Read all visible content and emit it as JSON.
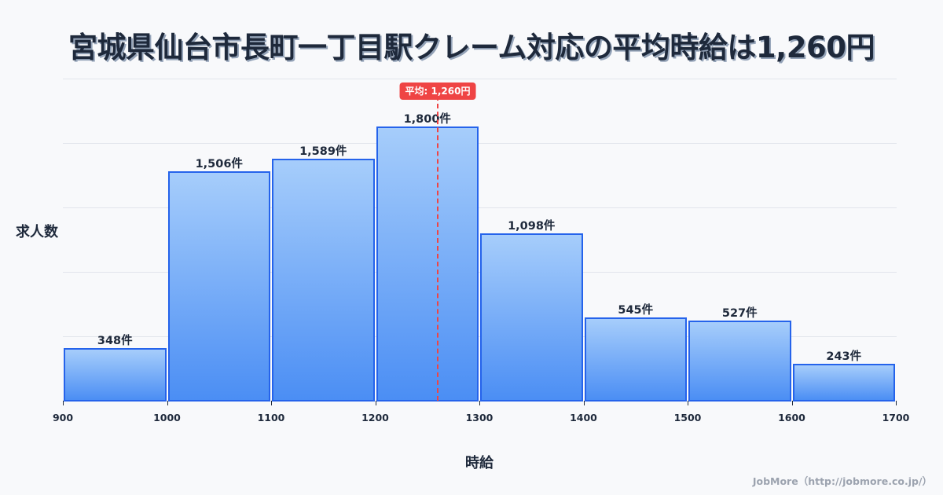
{
  "header": {
    "title": "宮城県仙台市長町一丁目駅クレーム対応の平均時給は1,260円"
  },
  "axes": {
    "ylabel": "求人数",
    "xlabel": "時給"
  },
  "mean_badge": "平均: 1,260円",
  "footer": "JobMore（http://jobmore.co.jp/）",
  "colors": {
    "bar_fill_top": "#a6cdfb",
    "bar_fill_bottom": "#4b8ef4",
    "bar_border": "#2563eb",
    "mean_line": "#ef4444",
    "background": "#f8f9fb",
    "text": "#1e293b"
  },
  "chart_data": {
    "type": "bar",
    "title": "宮城県仙台市長町一丁目駅クレーム対応の平均時給は1,260円",
    "xlabel": "時給",
    "ylabel": "求人数",
    "bins": [
      [
        900,
        1000
      ],
      [
        1000,
        1100
      ],
      [
        1100,
        1200
      ],
      [
        1200,
        1300
      ],
      [
        1300,
        1400
      ],
      [
        1400,
        1500
      ],
      [
        1500,
        1600
      ],
      [
        1600,
        1700
      ]
    ],
    "categories": [
      "900-1000",
      "1000-1100",
      "1100-1200",
      "1200-1300",
      "1300-1400",
      "1400-1500",
      "1500-1600",
      "1600-1700"
    ],
    "values": [
      348,
      1506,
      1589,
      1800,
      1098,
      545,
      527,
      243
    ],
    "value_labels": [
      "348件",
      "1,506件",
      "1,589件",
      "1,800件",
      "1,098件",
      "545件",
      "527件",
      "243件"
    ],
    "x_ticks": [
      900,
      1000,
      1100,
      1200,
      1300,
      1400,
      1500,
      1600,
      1700
    ],
    "xlim": [
      900,
      1700
    ],
    "ylim": [
      0,
      2114
    ],
    "grid": true,
    "y_tick_labels_visible": false,
    "mean": 1260,
    "mean_label": "平均: 1,260円",
    "legend": null
  }
}
